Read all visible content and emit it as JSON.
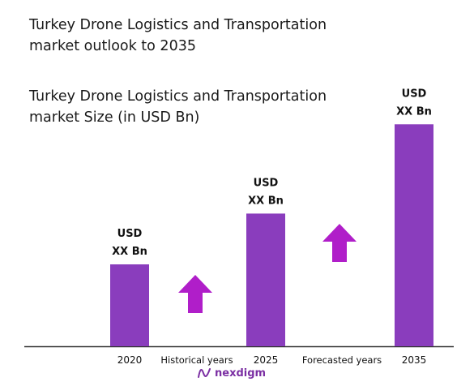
{
  "page": {
    "title_lines": [
      "Turkey Drone Logistics and Transportation",
      "market outlook to 2035"
    ],
    "subtitle_lines": [
      "Turkey Drone Logistics and Transportation",
      "market Size (in USD Bn)"
    ]
  },
  "chart_data": {
    "type": "bar",
    "categories": [
      "2020",
      "2025",
      "2035"
    ],
    "values": [
      1.0,
      1.62,
      2.71
    ],
    "value_note": "relative bar heights; actual values shown as placeholder labels",
    "data_labels": [
      [
        "USD",
        "XX Bn"
      ],
      [
        "USD",
        "XX Bn"
      ],
      [
        "USD",
        "XX Bn"
      ]
    ],
    "between_labels": [
      "Historical years",
      "Forecasted years"
    ],
    "colors": {
      "bar": "#8a3dbd",
      "arrow": "#b01ec9",
      "axis": "#333333",
      "label": "#111111"
    }
  },
  "brand": {
    "name": "nexdigm",
    "color": "#7b2fa3"
  }
}
